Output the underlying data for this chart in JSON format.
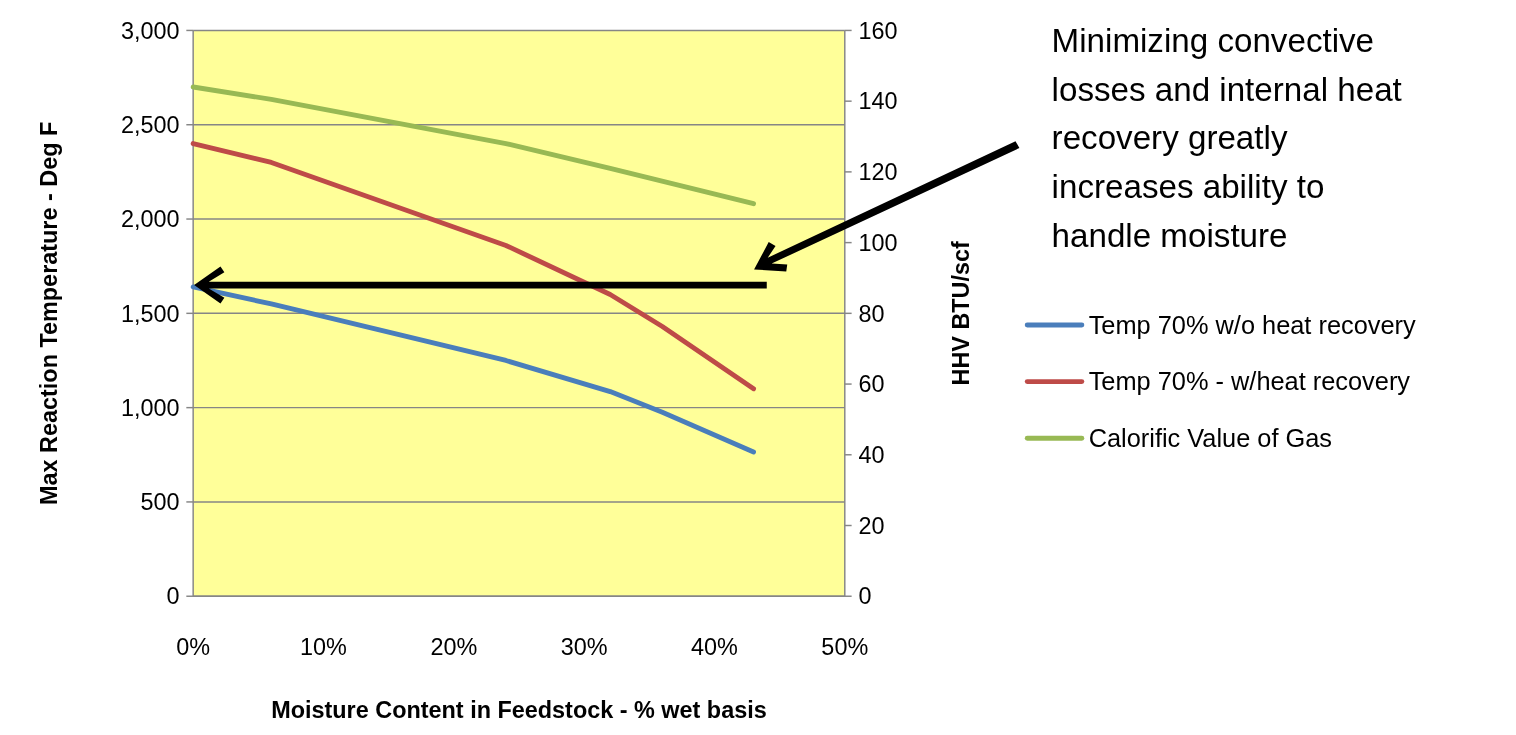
{
  "chart_data": {
    "type": "line",
    "xlabel": "Moisture Content in Feedstock - % wet basis",
    "ylabel": "Max Reaction Temperature - Deg F",
    "y2label": "HHV BTU/scf",
    "x": [
      0,
      6,
      24,
      32,
      36,
      43
    ],
    "xlim": [
      0,
      50
    ],
    "xticks": [
      {
        "value": 0,
        "label": "0%"
      },
      {
        "value": 10,
        "label": "10%"
      },
      {
        "value": 20,
        "label": "20%"
      },
      {
        "value": 30,
        "label": "30%"
      },
      {
        "value": 40,
        "label": "40%"
      },
      {
        "value": 50,
        "label": "50%"
      }
    ],
    "ylim": [
      0,
      3000
    ],
    "yticks": [
      {
        "value": 0,
        "label": "0"
      },
      {
        "value": 500,
        "label": "500"
      },
      {
        "value": 1000,
        "label": "1,000"
      },
      {
        "value": 1500,
        "label": "1,500"
      },
      {
        "value": 2000,
        "label": "2,000"
      },
      {
        "value": 2500,
        "label": "2,500"
      },
      {
        "value": 3000,
        "label": "3,000"
      }
    ],
    "y2lim": [
      0,
      160
    ],
    "y2ticks": [
      0,
      20,
      40,
      60,
      80,
      100,
      120,
      140,
      160
    ],
    "series": [
      {
        "name": "Temp 70% w/o heat recovery",
        "color": "#4a7ebb",
        "values": [
          1640,
          1550,
          1250,
          1085,
          975,
          765
        ]
      },
      {
        "name": "Temp 70% - w/heat recovery",
        "color": "#be4b48",
        "values": [
          2400,
          2300,
          1860,
          1600,
          1430,
          1100
        ]
      },
      {
        "name": "Calorific Value of Gas",
        "color": "#98b954",
        "axis": "y2",
        "x": [
          0,
          6,
          24,
          32,
          43
        ],
        "values": [
          144,
          140.5,
          128,
          121,
          111
        ]
      }
    ],
    "grid": "y",
    "legend": "right",
    "marker": "none",
    "line_style": "solid",
    "annotations": [
      "Minimizing convective losses and internal heat recovery greatly increases ability to handle moisture"
    ]
  }
}
